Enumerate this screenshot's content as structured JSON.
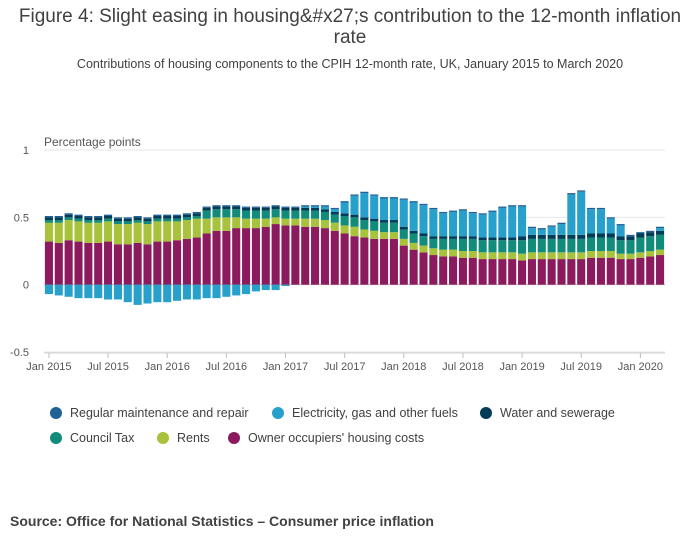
{
  "figure": {
    "title": "Figure 4: Slight easing in housing&#x27;s contribution to the 12-month inflation rate",
    "subtitle": "Contributions of housing components to the CPIH 12-month rate, UK, January 2015 to March 2020",
    "source": "Source: Office for National Statistics – Consumer price inflation"
  },
  "chart_data": {
    "type": "bar",
    "stacked": true,
    "ylabel": "Percentage points",
    "ylim": [
      -0.5,
      1
    ],
    "yticks": [
      -0.5,
      0,
      0.5,
      1
    ],
    "grid": true,
    "legend_position": "bottom",
    "x_tick_labels": [
      "Jan 2015",
      "Jul 2015",
      "Jan 2016",
      "Jul 2016",
      "Jan 2017",
      "Jul 2017",
      "Jan 2018",
      "Jul 2018",
      "Jan 2019",
      "Jul 2019",
      "Jan 2020"
    ],
    "x_tick_index": [
      0,
      6,
      12,
      18,
      24,
      30,
      36,
      42,
      48,
      54,
      60
    ],
    "categories": [
      "Jan 2015",
      "Feb 2015",
      "Mar 2015",
      "Apr 2015",
      "May 2015",
      "Jun 2015",
      "Jul 2015",
      "Aug 2015",
      "Sep 2015",
      "Oct 2015",
      "Nov 2015",
      "Dec 2015",
      "Jan 2016",
      "Feb 2016",
      "Mar 2016",
      "Apr 2016",
      "May 2016",
      "Jun 2016",
      "Jul 2016",
      "Aug 2016",
      "Sep 2016",
      "Oct 2016",
      "Nov 2016",
      "Dec 2016",
      "Jan 2017",
      "Feb 2017",
      "Mar 2017",
      "Apr 2017",
      "May 2017",
      "Jun 2017",
      "Jul 2017",
      "Aug 2017",
      "Sep 2017",
      "Oct 2017",
      "Nov 2017",
      "Dec 2017",
      "Jan 2018",
      "Feb 2018",
      "Mar 2018",
      "Apr 2018",
      "May 2018",
      "Jun 2018",
      "Jul 2018",
      "Aug 2018",
      "Sep 2018",
      "Oct 2018",
      "Nov 2018",
      "Dec 2018",
      "Jan 2019",
      "Feb 2019",
      "Mar 2019",
      "Apr 2019",
      "May 2019",
      "Jun 2019",
      "Jul 2019",
      "Aug 2019",
      "Sep 2019",
      "Oct 2019",
      "Nov 2019",
      "Dec 2019",
      "Jan 2020",
      "Feb 2020",
      "Mar 2020"
    ],
    "series": [
      {
        "name": "Owner occupiers' housing costs",
        "color": "#8c1a5e",
        "values": [
          0.32,
          0.31,
          0.33,
          0.32,
          0.31,
          0.31,
          0.32,
          0.3,
          0.3,
          0.31,
          0.3,
          0.32,
          0.32,
          0.33,
          0.34,
          0.35,
          0.38,
          0.4,
          0.4,
          0.42,
          0.42,
          0.42,
          0.43,
          0.45,
          0.44,
          0.44,
          0.43,
          0.43,
          0.42,
          0.4,
          0.38,
          0.36,
          0.35,
          0.34,
          0.34,
          0.34,
          0.29,
          0.26,
          0.24,
          0.22,
          0.21,
          0.21,
          0.2,
          0.2,
          0.19,
          0.19,
          0.19,
          0.19,
          0.18,
          0.19,
          0.19,
          0.19,
          0.19,
          0.19,
          0.19,
          0.2,
          0.2,
          0.2,
          0.19,
          0.19,
          0.2,
          0.21,
          0.22
        ]
      },
      {
        "name": "Rents",
        "color": "#a8c23b",
        "values": [
          0.14,
          0.15,
          0.15,
          0.15,
          0.15,
          0.15,
          0.15,
          0.15,
          0.15,
          0.15,
          0.15,
          0.15,
          0.15,
          0.14,
          0.14,
          0.14,
          0.11,
          0.1,
          0.1,
          0.08,
          0.07,
          0.07,
          0.06,
          0.05,
          0.05,
          0.05,
          0.06,
          0.06,
          0.06,
          0.06,
          0.06,
          0.07,
          0.06,
          0.06,
          0.05,
          0.05,
          0.05,
          0.05,
          0.05,
          0.05,
          0.05,
          0.05,
          0.05,
          0.05,
          0.05,
          0.05,
          0.05,
          0.05,
          0.05,
          0.05,
          0.05,
          0.05,
          0.05,
          0.05,
          0.05,
          0.05,
          0.05,
          0.05,
          0.04,
          0.04,
          0.04,
          0.04,
          0.04
        ]
      },
      {
        "name": "Council Tax",
        "color": "#118c7b",
        "values": [
          0.02,
          0.02,
          0.02,
          0.02,
          0.02,
          0.02,
          0.02,
          0.02,
          0.02,
          0.02,
          0.02,
          0.02,
          0.02,
          0.02,
          0.02,
          0.02,
          0.06,
          0.06,
          0.06,
          0.06,
          0.06,
          0.06,
          0.06,
          0.06,
          0.06,
          0.06,
          0.06,
          0.06,
          0.06,
          0.06,
          0.07,
          0.07,
          0.07,
          0.07,
          0.07,
          0.07,
          0.07,
          0.07,
          0.07,
          0.07,
          0.08,
          0.08,
          0.09,
          0.09,
          0.09,
          0.09,
          0.09,
          0.09,
          0.1,
          0.1,
          0.1,
          0.1,
          0.1,
          0.1,
          0.1,
          0.1,
          0.1,
          0.1,
          0.1,
          0.1,
          0.11,
          0.11,
          0.11
        ]
      },
      {
        "name": "Water and sewerage",
        "color": "#003c57",
        "values": [
          0.02,
          0.02,
          0.02,
          0.02,
          0.02,
          0.02,
          0.02,
          0.02,
          0.02,
          0.02,
          0.02,
          0.02,
          0.02,
          0.02,
          0.02,
          0.02,
          0.02,
          0.02,
          0.02,
          0.02,
          0.02,
          0.02,
          0.02,
          0.02,
          0.02,
          0.02,
          0.02,
          0.02,
          0.02,
          0.02,
          0.02,
          0.02,
          0.02,
          0.02,
          0.02,
          0.02,
          0.02,
          0.02,
          0.02,
          0.02,
          0.02,
          0.02,
          0.02,
          0.02,
          0.02,
          0.02,
          0.02,
          0.02,
          0.03,
          0.03,
          0.03,
          0.03,
          0.03,
          0.03,
          0.03,
          0.03,
          0.03,
          0.03,
          0.03,
          0.03,
          0.03,
          0.03,
          0.03
        ]
      },
      {
        "name": "Electricity, gas and other fuels",
        "color": "#27a0cc",
        "values": [
          -0.07,
          -0.08,
          -0.09,
          -0.1,
          -0.1,
          -0.1,
          -0.11,
          -0.11,
          -0.13,
          -0.15,
          -0.14,
          -0.13,
          -0.13,
          -0.12,
          -0.11,
          -0.11,
          -0.1,
          -0.1,
          -0.09,
          -0.08,
          -0.07,
          -0.05,
          -0.04,
          -0.04,
          -0.01,
          0.0,
          0.01,
          0.01,
          0.02,
          0.02,
          0.08,
          0.14,
          0.18,
          0.17,
          0.16,
          0.16,
          0.2,
          0.21,
          0.21,
          0.2,
          0.17,
          0.18,
          0.19,
          0.17,
          0.17,
          0.19,
          0.22,
          0.23,
          0.22,
          0.05,
          0.04,
          0.06,
          0.08,
          0.3,
          0.32,
          0.18,
          0.18,
          0.11,
          0.08,
          0.0,
          0.0,
          0.0,
          0.02
        ]
      },
      {
        "name": "Regular maintenance and repair",
        "color": "#206095",
        "values": [
          0.01,
          0.01,
          0.01,
          0.01,
          0.01,
          0.01,
          0.01,
          0.01,
          0.01,
          0.01,
          0.01,
          0.01,
          0.01,
          0.01,
          0.01,
          0.01,
          0.01,
          0.01,
          0.01,
          0.01,
          0.01,
          0.01,
          0.01,
          0.01,
          0.01,
          0.01,
          0.01,
          0.01,
          0.01,
          0.01,
          0.01,
          0.01,
          0.01,
          0.01,
          0.01,
          0.01,
          0.01,
          0.01,
          0.01,
          0.01,
          0.01,
          0.01,
          0.01,
          0.01,
          0.01,
          0.01,
          0.01,
          0.01,
          0.01,
          0.01,
          0.01,
          0.01,
          0.01,
          0.01,
          0.01,
          0.01,
          0.01,
          0.01,
          0.01,
          0.01,
          0.01,
          0.01,
          0.01
        ]
      }
    ]
  },
  "legend": [
    {
      "label": "Regular maintenance and repair",
      "color": "#206095"
    },
    {
      "label": "Electricity, gas and other fuels",
      "color": "#27a0cc"
    },
    {
      "label": "Water and sewerage",
      "color": "#003c57"
    },
    {
      "label": "Council Tax",
      "color": "#118c7b"
    },
    {
      "label": "Rents",
      "color": "#a8c23b"
    },
    {
      "label": "Owner occupiers' housing costs",
      "color": "#8c1a5e"
    }
  ]
}
